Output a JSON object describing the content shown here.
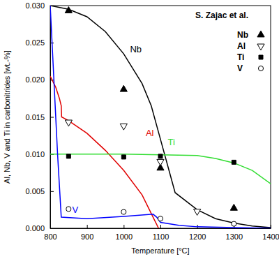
{
  "chart_data": {
    "type": "line",
    "title": "S. Zajac et al.",
    "x_label": "Temperature [°C]",
    "y_label": "Al, Nb, V and Ti in carbonitrides [wt.-%]",
    "xlim": [
      800,
      1400
    ],
    "xticks": [
      800,
      900,
      1000,
      1100,
      1200,
      1300,
      1400
    ],
    "ylim": [
      0,
      0.03
    ],
    "yticks": [
      {
        "value": 0,
        "label": "0.000"
      },
      {
        "value": 0.005,
        "label": "0.005"
      },
      {
        "value": 0.01,
        "label": "0.010"
      },
      {
        "value": 0.015,
        "label": "0.015"
      },
      {
        "value": 0.02,
        "label": "0.020"
      },
      {
        "value": 0.025,
        "label": "0.025"
      },
      {
        "value": 0.03,
        "label": "0.030"
      }
    ],
    "grid": false,
    "legend": "top-right",
    "series": [
      {
        "type": "line",
        "color": "#000000",
        "x": [
          800,
          850,
          900,
          950,
          1000,
          1050,
          1075,
          1100,
          1125,
          1140,
          1200,
          1250,
          1300,
          1350,
          1400
        ],
        "values": [
          0.03,
          0.0295,
          0.0285,
          0.0265,
          0.0235,
          0.0195,
          0.0165,
          0.012,
          0.0075,
          0.0048,
          0.0025,
          0.0013,
          0.0007,
          0.0003,
          0.0001
        ]
      },
      {
        "type": "line",
        "color": "#e00000",
        "x": [
          800,
          815,
          825,
          830,
          831,
          850,
          900,
          950,
          1000,
          1050,
          1080,
          1095
        ],
        "values": [
          0.0205,
          0.019,
          0.0175,
          0.0165,
          0.015,
          0.0145,
          0.0128,
          0.0105,
          0.0078,
          0.0045,
          0.0015,
          0
        ]
      },
      {
        "type": "line",
        "color": "#33dd33",
        "x": [
          800,
          900,
          1000,
          1100,
          1200,
          1250,
          1300,
          1350,
          1400
        ],
        "values": [
          0.01,
          0.01,
          0.01,
          0.0099,
          0.0098,
          0.0094,
          0.0088,
          0.0078,
          0.006
        ]
      },
      {
        "type": "line",
        "color": "#0000ff",
        "x": [
          800,
          810,
          820,
          830,
          900,
          1000,
          1080,
          1090,
          1100,
          1150,
          1200,
          1300,
          1400
        ],
        "values": [
          0.03,
          0.02,
          0.01,
          0.0015,
          0.0013,
          0.0016,
          0.0019,
          0.0015,
          0.0008,
          0.0004,
          0.0002,
          0.0001,
          0
        ]
      },
      {
        "type": "scatter",
        "name": "Nb",
        "marker": "triangle",
        "color": "#000000",
        "x": [
          850,
          1000,
          1100,
          1300
        ],
        "values": [
          0.0293,
          0.0187,
          0.0081,
          0.0027
        ]
      },
      {
        "type": "scatter",
        "name": "Al",
        "marker": "triangle-down-open",
        "color": "#000000",
        "x": [
          850,
          1000,
          1100,
          1200
        ],
        "values": [
          0.0143,
          0.0138,
          0.009,
          0.0023
        ]
      },
      {
        "type": "scatter",
        "name": "Ti",
        "marker": "square",
        "color": "#000000",
        "x": [
          850,
          1000,
          1100,
          1300
        ],
        "values": [
          0.0097,
          0.0096,
          0.0097,
          0.0089
        ]
      },
      {
        "type": "scatter",
        "name": "V",
        "marker": "circle-open",
        "color": "#000000",
        "x": [
          850,
          1000,
          1100,
          1300
        ],
        "values": [
          0.0026,
          0.0022,
          0.0013,
          0.0006
        ]
      }
    ],
    "annotations": [
      {
        "text": "Nb",
        "x": 1033,
        "y": 0.0237,
        "color": "#000000"
      },
      {
        "text": "Al",
        "x": 1071,
        "y": 0.0124,
        "color": "#e00000"
      },
      {
        "text": "Ti",
        "x": 1130,
        "y": 0.0112,
        "color": "#33dd33"
      },
      {
        "text": "V",
        "x": 868,
        "y": 0.0021,
        "color": "#0000ff"
      }
    ]
  }
}
